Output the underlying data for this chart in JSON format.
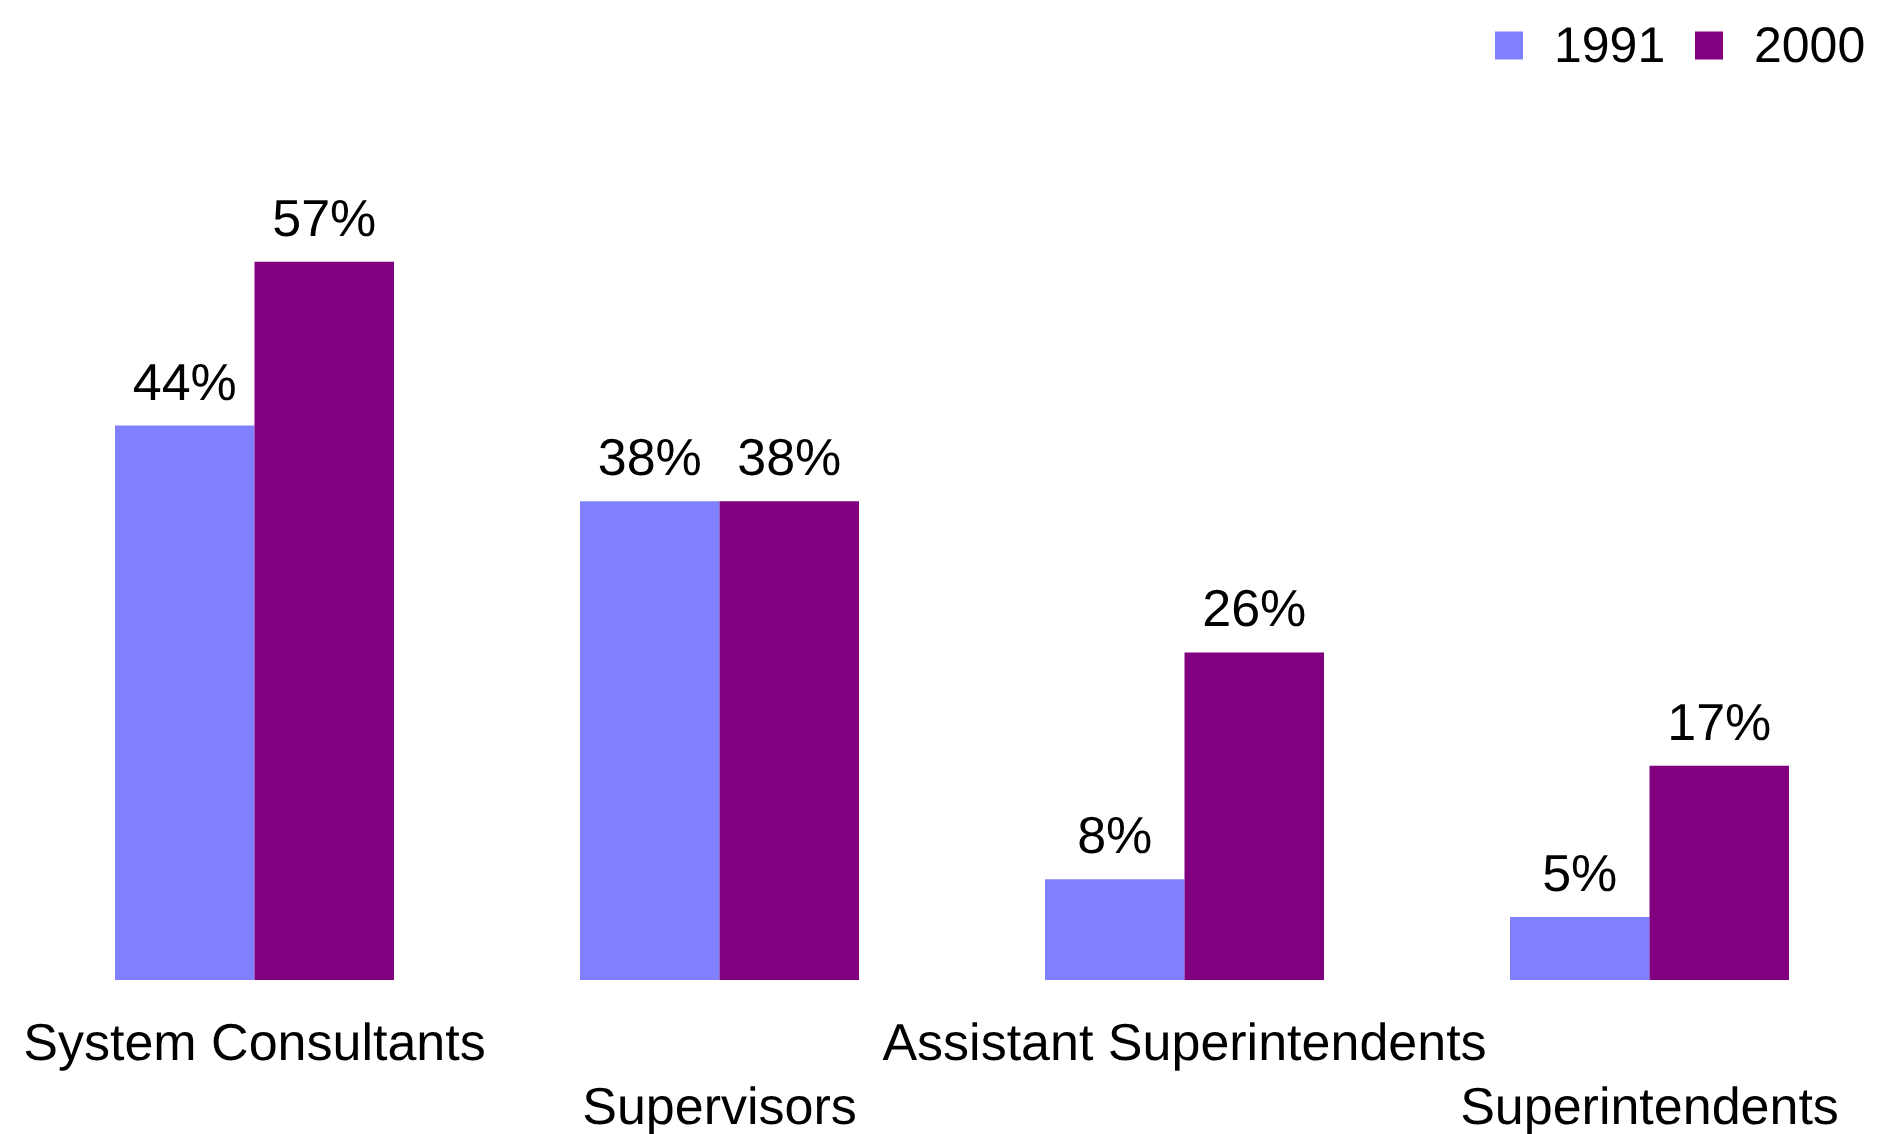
{
  "chart_data": {
    "type": "bar",
    "categories": [
      "System Consultants",
      "Supervisors",
      "Assistant Superintendents",
      "Superintendents"
    ],
    "series": [
      {
        "name": "1991",
        "color": "#8080ff",
        "values": [
          44,
          38,
          8,
          5
        ],
        "value_labels": [
          "44%",
          "38%",
          "8%",
          "5%"
        ]
      },
      {
        "name": "2000",
        "color": "#800080",
        "values": [
          57,
          38,
          26,
          17
        ],
        "value_labels": [
          "57%",
          "38%",
          "26%",
          "17%"
        ]
      }
    ],
    "legend": "top right"
  }
}
